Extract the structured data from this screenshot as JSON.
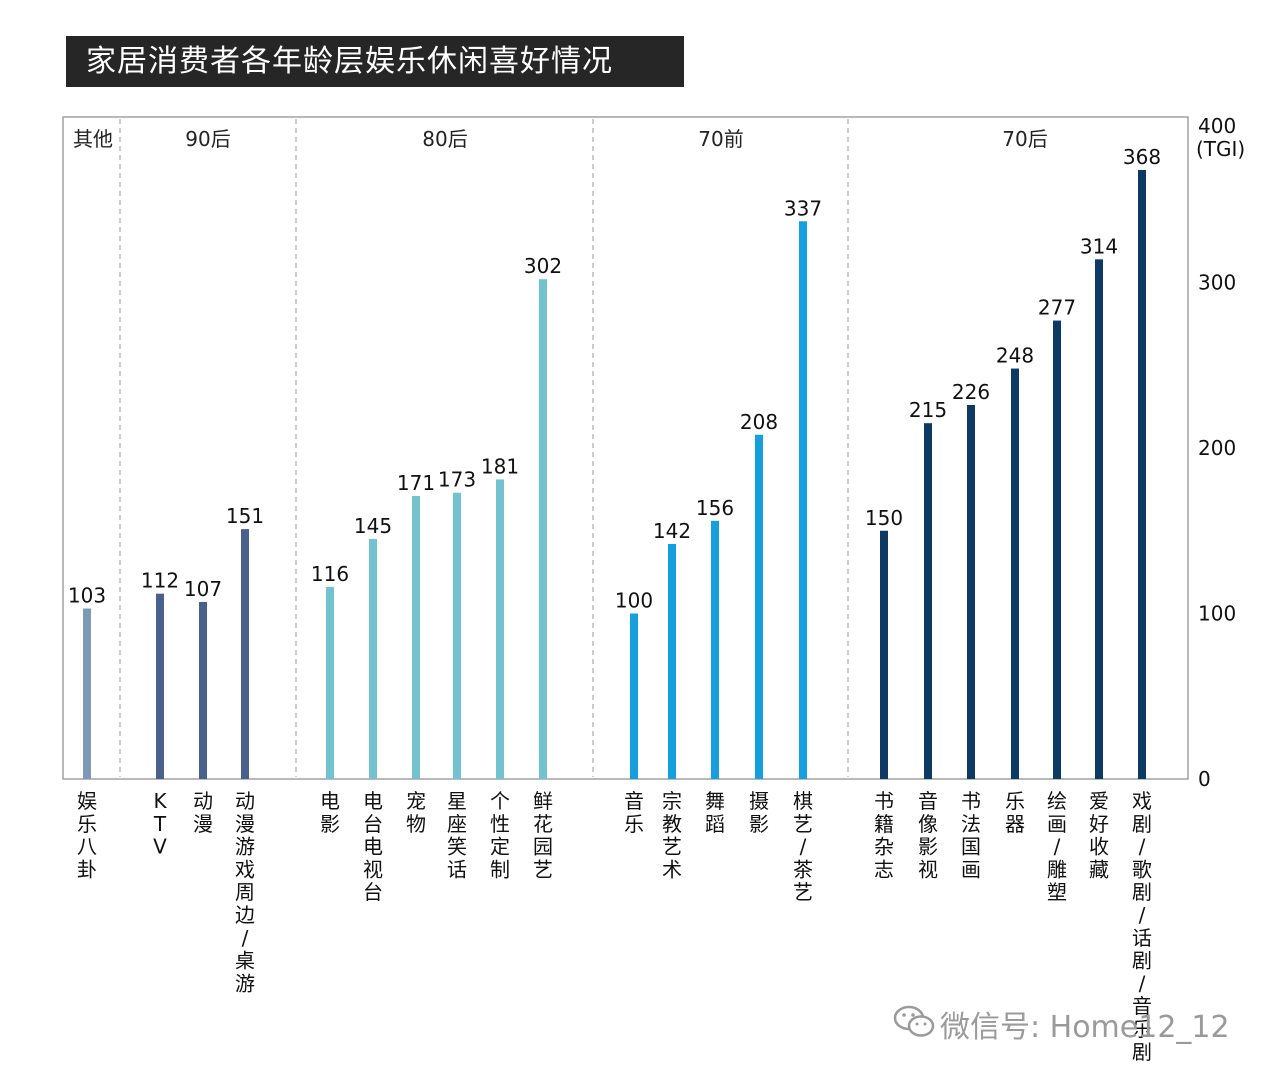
{
  "chart_data": {
    "type": "bar",
    "title": "家居消费者各年龄层娱乐休闲喜好情况",
    "ylabel": "(TGI)",
    "ylim": [
      0,
      400
    ],
    "yticks": [
      0,
      100,
      200,
      300,
      400
    ],
    "groups": [
      {
        "name": "其他",
        "color": "#7e99b5",
        "items": [
          {
            "label": "娱乐八卦",
            "value": 103
          }
        ]
      },
      {
        "name": "90后",
        "color": "#4a618c",
        "items": [
          {
            "label": "KTV",
            "value": 112
          },
          {
            "label": "动漫",
            "value": 107
          },
          {
            "label": "动漫游戏周边/桌游",
            "value": 151
          }
        ]
      },
      {
        "name": "80后",
        "color": "#72c2d0",
        "items": [
          {
            "label": "电影",
            "value": 116
          },
          {
            "label": "电台电视台",
            "value": 145
          },
          {
            "label": "宠物",
            "value": 171
          },
          {
            "label": "星座笑话",
            "value": 173
          },
          {
            "label": "个性定制",
            "value": 181
          },
          {
            "label": "鲜花园艺",
            "value": 302
          }
        ]
      },
      {
        "name": "70前",
        "color": "#169fdc",
        "items": [
          {
            "label": "音乐",
            "value": 100
          },
          {
            "label": "宗教艺术",
            "value": 142
          },
          {
            "label": "舞蹈",
            "value": 156
          },
          {
            "label": "摄影",
            "value": 208
          },
          {
            "label": "棋艺/茶艺",
            "value": 337
          }
        ]
      },
      {
        "name": "70后",
        "color": "#0d3a62",
        "items": [
          {
            "label": "书籍杂志",
            "value": 150
          },
          {
            "label": "音像影视",
            "value": 215
          },
          {
            "label": "书法国画",
            "value": 226
          },
          {
            "label": "乐器",
            "value": 248
          },
          {
            "label": "绘画/雕塑",
            "value": 277
          },
          {
            "label": "爱好收藏",
            "value": 314
          },
          {
            "label": "戏剧/歌剧/话剧/音乐剧",
            "value": 368
          }
        ]
      }
    ]
  },
  "watermark": {
    "icon": "wechat-icon",
    "text": "微信号: Home12_12"
  }
}
